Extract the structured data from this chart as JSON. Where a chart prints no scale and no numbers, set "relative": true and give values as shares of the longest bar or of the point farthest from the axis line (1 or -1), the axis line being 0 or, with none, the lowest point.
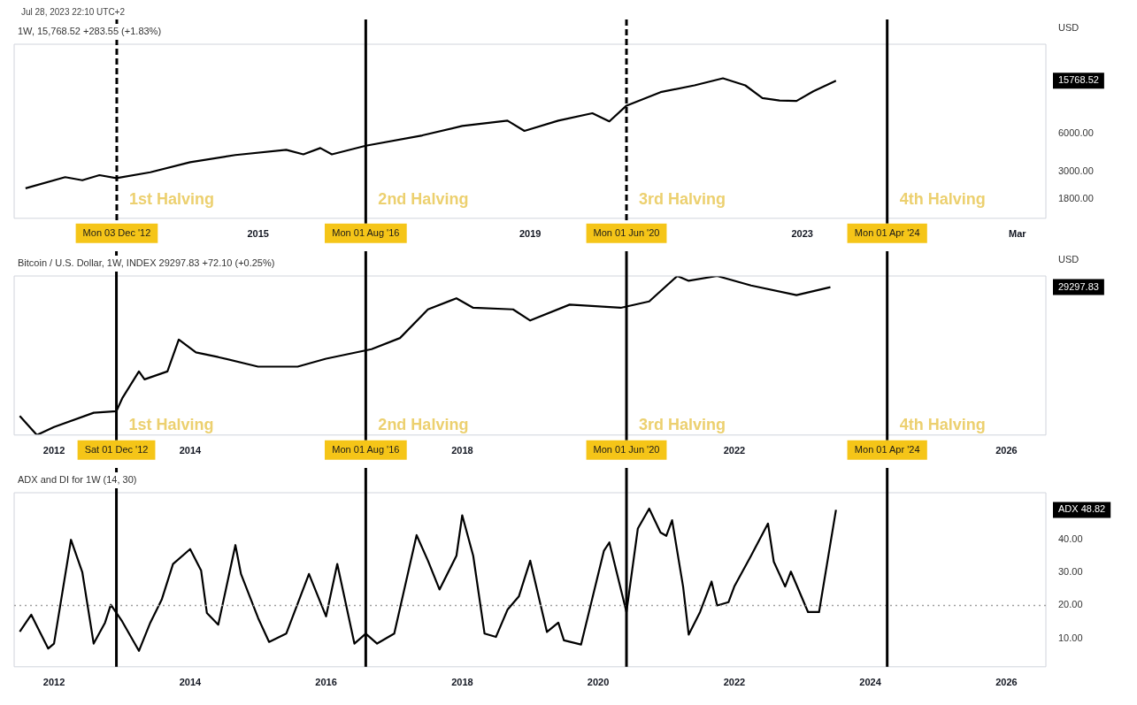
{
  "chart_data": [
    {
      "type": "line",
      "title": "1W, 15,768.52 +283.55 (+1.83%)",
      "subtitle": "Jul 28, 2023 22:10 UTC+2",
      "ylabel": "USD",
      "log": true,
      "color": "#000000",
      "x": [
        "2011-08",
        "2012-03",
        "2012-06",
        "2012-09",
        "2012-12",
        "2013-06",
        "2014-01",
        "2014-09",
        "2015-06",
        "2015-09",
        "2015-12",
        "2016-02",
        "2016-08",
        "2017-06",
        "2018-01",
        "2018-09",
        "2018-12",
        "2019-06",
        "2019-12",
        "2020-03",
        "2020-06",
        "2020-12",
        "2021-06",
        "2021-11",
        "2022-03",
        "2022-06",
        "2022-09",
        "2022-12",
        "2023-03",
        "2023-07"
      ],
      "values": [
        2200,
        2700,
        2550,
        2800,
        2650,
        2950,
        3550,
        4050,
        4450,
        4100,
        4600,
        4100,
        4800,
        5800,
        6900,
        7600,
        6300,
        7600,
        8700,
        7500,
        10000,
        12800,
        14500,
        16500,
        14500,
        11500,
        11000,
        10900,
        13000,
        15768.52
      ],
      "xlim": [
        "2011-06",
        "2026-08"
      ],
      "xticks": [
        {
          "value": "2015",
          "label": "2015"
        },
        {
          "value": "2019",
          "label": "2019"
        },
        {
          "value": "2023",
          "label": "2023"
        },
        {
          "value": "2026-03",
          "label": "Mar"
        }
      ],
      "ylim": [
        1270,
        30800
      ],
      "yticks": [
        {
          "value": 1800,
          "label": "1800.00"
        },
        {
          "value": 3000,
          "label": "3000.00"
        },
        {
          "value": 6000,
          "label": "6000.00"
        }
      ],
      "ref_lines": [
        {
          "axis": "x",
          "value": "2012-12-03",
          "label": "Mon 03 Dec '12",
          "color": "#000000",
          "line_style": "dashed"
        },
        {
          "axis": "x",
          "value": "2016-08-01",
          "label": "Mon 01 Aug '16",
          "color": "#000000",
          "line_style": "solid"
        },
        {
          "axis": "x",
          "value": "2020-06-01",
          "label": "Mon 01 Jun '20",
          "color": "#000000",
          "line_style": "dashed"
        },
        {
          "axis": "x",
          "value": "2024-04-01",
          "label": "Mon 01 Apr '24",
          "color": "#000000",
          "line_style": "solid"
        }
      ],
      "annotations": [
        {
          "text": "1st Halving",
          "x": "2012-12-03",
          "y": 1540
        },
        {
          "text": "2nd Halving",
          "x": "2016-08-01",
          "y": 1540
        },
        {
          "text": "3rd Halving",
          "x": "2020-06-01",
          "y": 1540
        },
        {
          "text": "4th Halving",
          "x": "2024-04-01",
          "y": 1540
        },
        "15768.52"
      ]
    },
    {
      "type": "line",
      "title": "Bitcoin / U.S. Dollar, 1W, INDEX 29297.83 +72.10 (+0.25%)",
      "ylabel": "USD",
      "relative": true,
      "color": "#000000",
      "x": [
        "2011-07",
        "2011-10",
        "2012-01",
        "2012-08",
        "2012-12",
        "2013-01",
        "2013-04",
        "2013-05",
        "2013-09",
        "2013-11",
        "2014-02",
        "2014-06",
        "2015-01",
        "2015-08",
        "2016-01",
        "2016-09",
        "2017-02",
        "2017-07",
        "2017-12",
        "2018-03",
        "2018-10",
        "2019-01",
        "2019-08",
        "2020-05",
        "2020-10",
        "2021-03",
        "2021-05",
        "2021-10",
        "2022-04",
        "2022-12",
        "2023-06"
      ],
      "values": [
        0.12,
        0,
        0.05,
        0.14,
        0.15,
        0.23,
        0.4,
        0.35,
        0.4,
        0.6,
        0.52,
        0.49,
        0.43,
        0.43,
        0.48,
        0.54,
        0.61,
        0.79,
        0.86,
        0.8,
        0.79,
        0.72,
        0.82,
        0.8,
        0.84,
        1,
        0.97,
        1,
        0.94,
        0.88,
        0.93
      ],
      "xlim": [
        "2011-06",
        "2026-08"
      ],
      "xticks": [
        {
          "value": "2012",
          "label": "2012"
        },
        {
          "value": "2014",
          "label": "2014"
        },
        {
          "value": "2018",
          "label": "2018"
        },
        {
          "value": "2022",
          "label": "2022"
        },
        {
          "value": "2026",
          "label": "2026"
        }
      ],
      "ref_lines": [
        {
          "axis": "x",
          "value": "2012-12-01",
          "label": "Sat 01 Dec '12",
          "color": "#000000",
          "line_style": "solid"
        },
        {
          "axis": "x",
          "value": "2016-08-01",
          "label": "Mon 01 Aug '16",
          "color": "#000000",
          "line_style": "solid"
        },
        {
          "axis": "x",
          "value": "2020-06-01",
          "label": "Mon 01 Jun '20",
          "color": "#000000",
          "line_style": "solid"
        },
        {
          "axis": "x",
          "value": "2024-04-01",
          "label": "Mon 01 Apr '24",
          "color": "#000000",
          "line_style": "solid"
        }
      ],
      "annotations": [
        {
          "text": "1st Halving",
          "x": "2012-12-01",
          "y": 0.01
        },
        {
          "text": "2nd Halving",
          "x": "2016-08-01",
          "y": 0.01
        },
        {
          "text": "3rd Halving",
          "x": "2020-06-01",
          "y": 0.01
        },
        {
          "text": "4th Halving",
          "x": "2024-04-01",
          "y": 0.01
        },
        "29297.83"
      ]
    },
    {
      "type": "line",
      "title": "ADX and DI for 1W (14, 30)",
      "color": "#000000",
      "x": [
        "2011-07",
        "2011-09",
        "2011-10",
        "2011-12",
        "2012-01",
        "2012-04",
        "2012-06",
        "2012-08",
        "2012-10",
        "2012-11",
        "2013-01",
        "2013-04",
        "2013-06",
        "2013-08",
        "2013-10",
        "2014-01",
        "2014-03",
        "2014-04",
        "2014-06",
        "2014-09",
        "2014-10",
        "2015-01",
        "2015-03",
        "2015-06",
        "2015-10",
        "2016-01",
        "2016-03",
        "2016-06",
        "2016-08",
        "2016-10",
        "2017-01",
        "2017-05",
        "2017-07",
        "2017-09",
        "2017-12",
        "2018-01",
        "2018-03",
        "2018-05",
        "2018-07",
        "2018-09",
        "2018-11",
        "2019-01",
        "2019-04",
        "2019-06",
        "2019-07",
        "2019-10",
        "2020-02",
        "2020-03",
        "2020-06",
        "2020-08",
        "2020-10",
        "2020-12",
        "2021-01",
        "2021-02",
        "2021-04",
        "2021-05",
        "2021-07",
        "2021-09",
        "2021-10",
        "2021-12",
        "2022-01",
        "2022-04",
        "2022-07",
        "2022-08",
        "2022-10",
        "2022-11",
        "2023-02",
        "2023-04",
        "2023-07"
      ],
      "values": [
        12.1,
        17.2,
        13.8,
        7,
        8.5,
        39.8,
        30,
        8.5,
        14.8,
        20.2,
        15.2,
        6.3,
        14.8,
        21.7,
        32.5,
        37,
        30.5,
        17.7,
        14.2,
        38.2,
        29.5,
        16.2,
        9,
        11.5,
        29.5,
        16.7,
        32.5,
        8.5,
        11.5,
        8.5,
        11.5,
        41.2,
        33.5,
        24.8,
        35,
        47.2,
        35,
        11.5,
        10.5,
        18.7,
        22.7,
        33.5,
        12,
        14.8,
        9.5,
        8.2,
        36.5,
        39,
        18,
        43.2,
        49.2,
        42,
        41,
        45.7,
        25.7,
        11.2,
        18,
        27.2,
        20,
        21,
        25.7,
        35,
        44.7,
        33.2,
        25.7,
        30.2,
        18,
        18,
        48.82
      ],
      "xlim": [
        "2011-06",
        "2026-08"
      ],
      "xticks": [
        {
          "value": "2012",
          "label": "2012"
        },
        {
          "value": "2014",
          "label": "2014"
        },
        {
          "value": "2016",
          "label": "2016"
        },
        {
          "value": "2018",
          "label": "2018"
        },
        {
          "value": "2020",
          "label": "2020"
        },
        {
          "value": "2022",
          "label": "2022"
        },
        {
          "value": "2024",
          "label": "2024"
        },
        {
          "value": "2026",
          "label": "2026"
        }
      ],
      "ylim": [
        1.5,
        54
      ],
      "yticks": [
        {
          "value": 10,
          "label": "10.00"
        },
        {
          "value": 20,
          "label": "20.00"
        },
        {
          "value": 30,
          "label": "30.00"
        },
        {
          "value": 40,
          "label": "40.00"
        }
      ],
      "ref_lines": [
        {
          "axis": "y",
          "value": 20,
          "color": "#9e9e9e",
          "line_style": "dotted"
        },
        {
          "axis": "x",
          "value": "2012-12-01",
          "color": "#000000",
          "line_style": "solid"
        },
        {
          "axis": "x",
          "value": "2016-08-01",
          "color": "#000000",
          "line_style": "solid"
        },
        {
          "axis": "x",
          "value": "2020-06-01",
          "color": "#000000",
          "line_style": "solid"
        },
        {
          "axis": "x",
          "value": "2024-04-01",
          "color": "#000000",
          "line_style": "solid"
        }
      ],
      "annotations": [
        "ADX 48.82"
      ]
    }
  ]
}
